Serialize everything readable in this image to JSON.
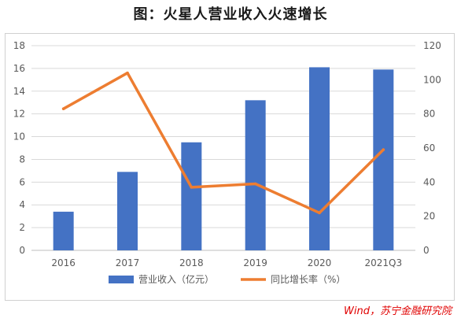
{
  "title": "图：火星人营业收入火速增长",
  "source": "Wind，苏宁金融研究院",
  "colors": {
    "bar": "#4472c4",
    "line": "#ed7d31",
    "grid": "#d9d9d9",
    "axis_text": "#595959"
  },
  "chart_data": {
    "type": "bar",
    "categories": [
      "2016",
      "2017",
      "2018",
      "2019",
      "2020",
      "2021Q3"
    ],
    "series": [
      {
        "name": "营业收入（亿元）",
        "type": "bar",
        "axis": "left",
        "values": [
          3.4,
          6.9,
          9.5,
          13.2,
          16.1,
          15.9
        ]
      },
      {
        "name": "同比增长率（%）",
        "type": "line",
        "axis": "right",
        "values": [
          83,
          104,
          37,
          39,
          22,
          59
        ]
      }
    ],
    "ylim_left": [
      0,
      18
    ],
    "yticks_left": [
      0,
      2,
      4,
      6,
      8,
      10,
      12,
      14,
      16,
      18
    ],
    "ylim_right": [
      0,
      120
    ],
    "yticks_right": [
      0,
      20,
      40,
      60,
      80,
      100,
      120
    ],
    "grid": true,
    "legend": "bottom"
  }
}
